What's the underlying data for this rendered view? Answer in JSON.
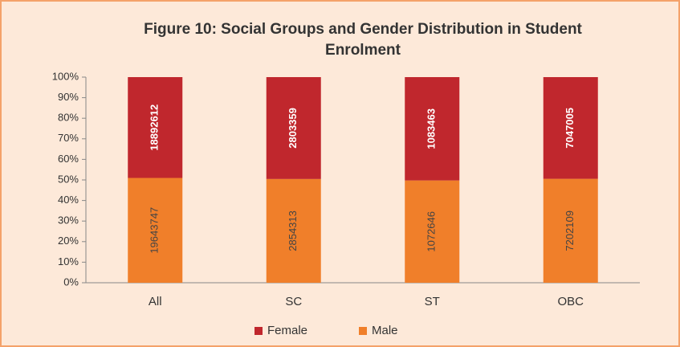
{
  "chart_data": {
    "type": "bar",
    "stacked": "percent",
    "title": "Figure 10: Social Groups and Gender Distribution in Student Enrolment",
    "categories": [
      "All",
      "SC",
      "ST",
      "OBC"
    ],
    "series": [
      {
        "name": "Female",
        "color": "#c0272d",
        "values": [
          18892612,
          2803359,
          1083463,
          7047005
        ]
      },
      {
        "name": "Male",
        "color": "#f07f2a",
        "values": [
          19643747,
          2854313,
          1072646,
          7202109
        ]
      }
    ],
    "ylim": [
      0,
      100
    ],
    "yticks": [
      {
        "value": 0,
        "label": "0%"
      },
      {
        "value": 10,
        "label": "10%"
      },
      {
        "value": 20,
        "label": "20%"
      },
      {
        "value": 30,
        "label": "30%"
      },
      {
        "value": 40,
        "label": "40%"
      },
      {
        "value": 50,
        "label": "50%"
      },
      {
        "value": 60,
        "label": "60%"
      },
      {
        "value": 70,
        "label": "70%"
      },
      {
        "value": 80,
        "label": "80%"
      },
      {
        "value": 90,
        "label": "90%"
      },
      {
        "value": 100,
        "label": "100%"
      }
    ],
    "legend": "bottom"
  }
}
